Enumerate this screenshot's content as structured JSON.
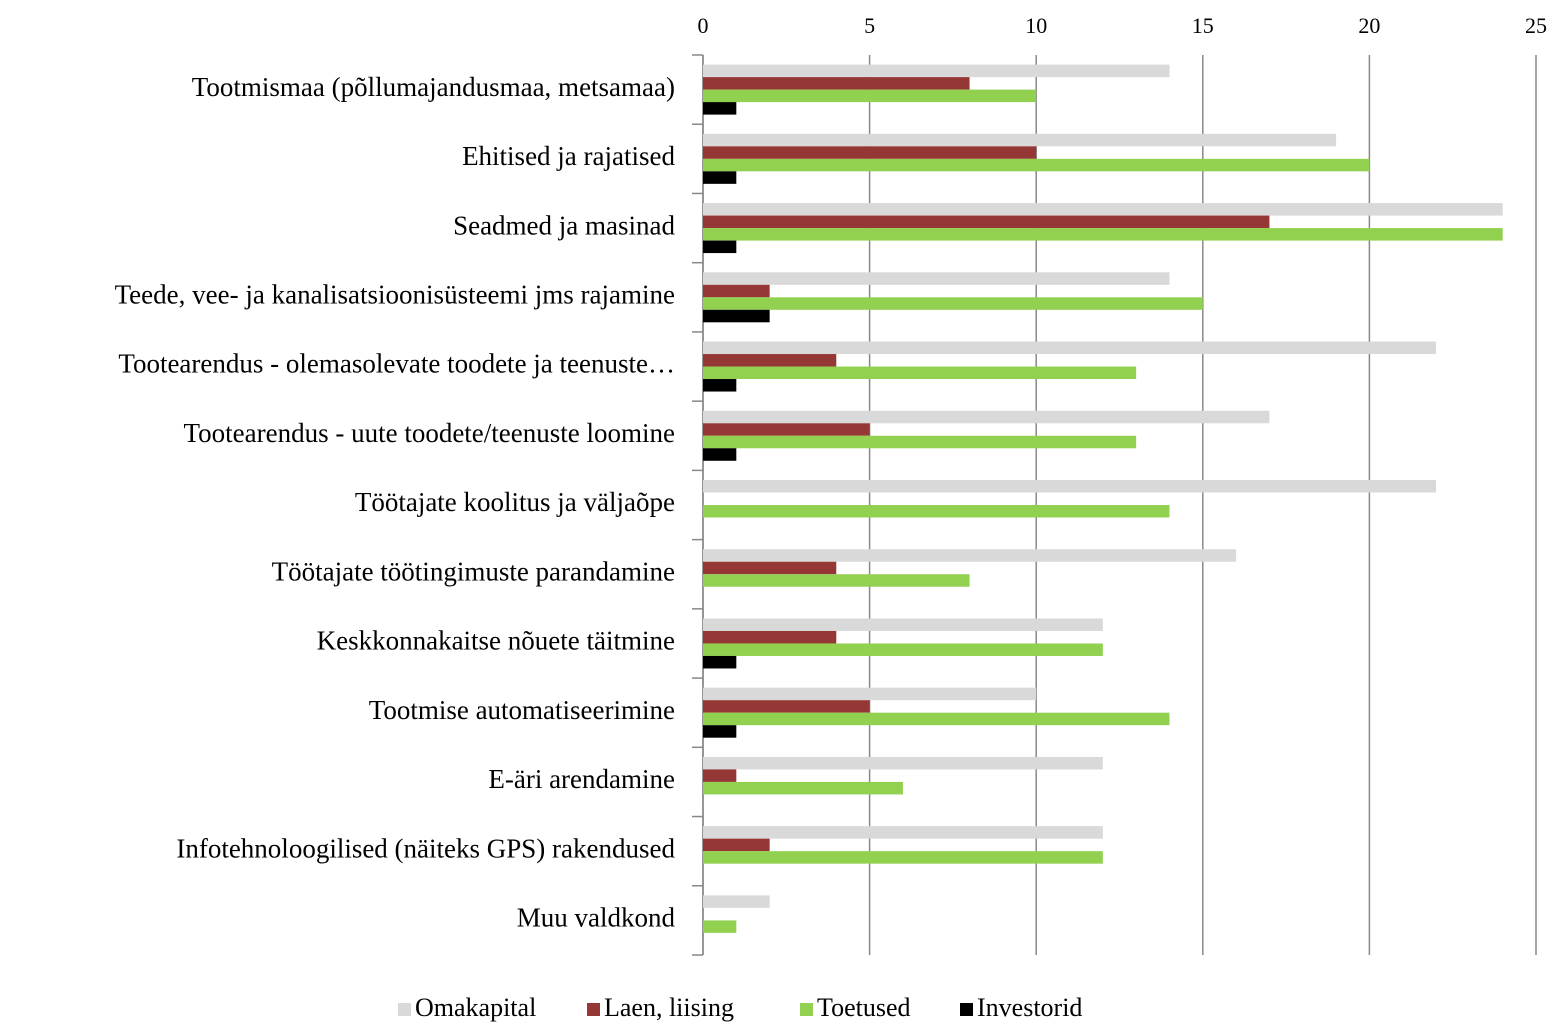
{
  "chart_data": {
    "type": "hbar",
    "categories": [
      "Tootmismaa (põllumajandusmaa, metsamaa)",
      "Ehitised ja rajatised",
      "Seadmed ja masinad",
      "Teede, vee- ja kanalisatsioonisüsteemi jms rajamine",
      "Tootearendus - olemasolevate toodete ja teenuste…",
      "Tootearendus - uute toodete/teenuste loomine",
      "Töötajate koolitus ja väljaõpe",
      "Töötajate töötingimuste parandamine",
      "Keskkonnakaitse nõuete täitmine",
      "Tootmise automatiseerimine",
      "E-äri arendamine",
      "Infotehnoloogilised (näiteks GPS) rakendused",
      "Muu valdkond"
    ],
    "series": [
      {
        "name": "Omakapital",
        "color": "#d9d9d9",
        "values": [
          14,
          19,
          24,
          14,
          22,
          17,
          22,
          16,
          12,
          10,
          12,
          12,
          2
        ]
      },
      {
        "name": "Laen, liising",
        "color": "#953735",
        "values": [
          8,
          10,
          17,
          2,
          4,
          5,
          0,
          4,
          4,
          5,
          1,
          2,
          0
        ]
      },
      {
        "name": "Toetused",
        "color": "#92d050",
        "values": [
          10,
          20,
          24,
          15,
          13,
          13,
          14,
          8,
          12,
          14,
          6,
          12,
          1
        ]
      },
      {
        "name": "Investorid",
        "color": "#000000",
        "values": [
          1,
          1,
          1,
          2,
          1,
          1,
          0,
          0,
          1,
          1,
          0,
          0,
          0
        ]
      }
    ],
    "xlim": [
      0,
      25
    ],
    "xticks": [
      0,
      5,
      10,
      15,
      20,
      25
    ],
    "grid": true,
    "legend": "bottom"
  }
}
